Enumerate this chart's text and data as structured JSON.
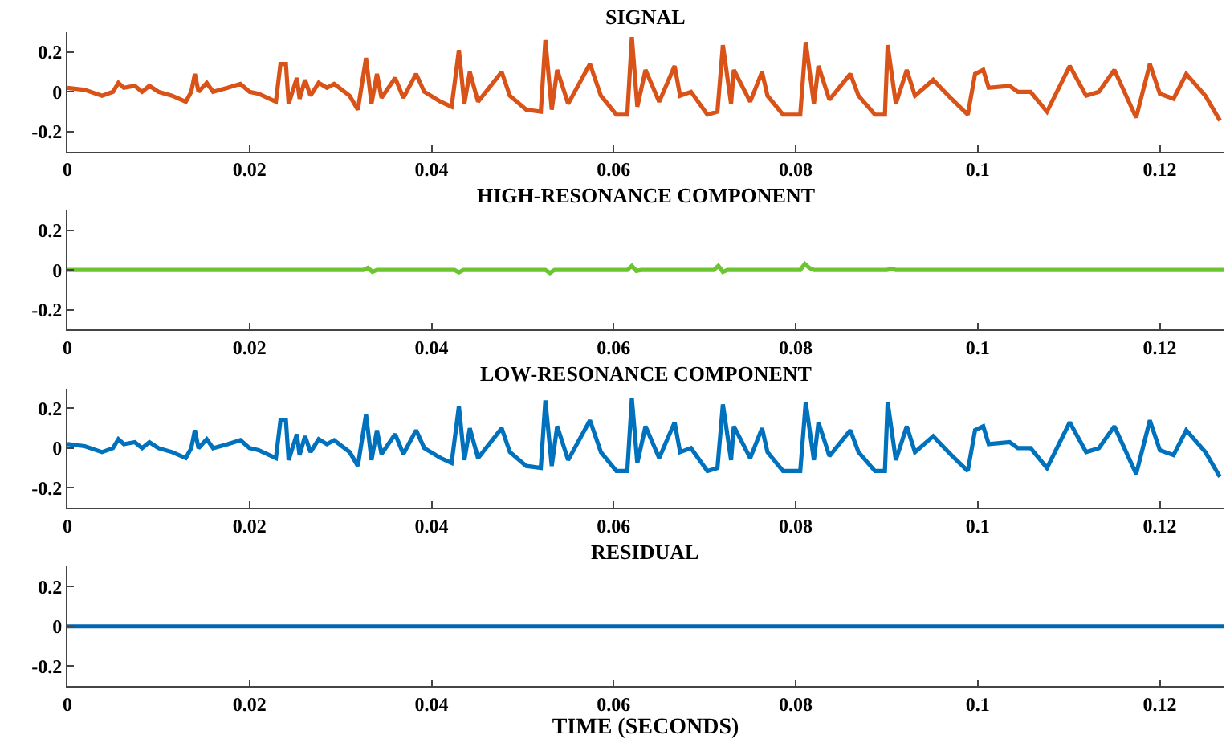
{
  "chart_data": [
    {
      "type": "line",
      "title": "SIGNAL",
      "color": "#d95319",
      "xlim": [
        0,
        0.127
      ],
      "ylim": [
        -0.3,
        0.3
      ],
      "xticks": [
        0,
        0.02,
        0.04,
        0.06,
        0.08,
        0.1,
        0.12
      ],
      "yticks": [
        -0.2,
        0,
        0.2
      ],
      "x": [
        0,
        0.0019,
        0.0038,
        0.005,
        0.0056,
        0.0062,
        0.0074,
        0.0082,
        0.009,
        0.01,
        0.0115,
        0.013,
        0.0136,
        0.014,
        0.0144,
        0.0153,
        0.016,
        0.0176,
        0.019,
        0.02,
        0.021,
        0.0229,
        0.0234,
        0.024,
        0.0243,
        0.0252,
        0.0255,
        0.0261,
        0.0267,
        0.0276,
        0.0285,
        0.0293,
        0.031,
        0.0319,
        0.0328,
        0.0334,
        0.034,
        0.0345,
        0.036,
        0.0369,
        0.0383,
        0.0392,
        0.041,
        0.0422,
        0.043,
        0.0436,
        0.0442,
        0.0451,
        0.0477,
        0.0486,
        0.0504,
        0.052,
        0.0525,
        0.0532,
        0.0538,
        0.055,
        0.0574,
        0.0586,
        0.0603,
        0.0615,
        0.062,
        0.0626,
        0.0635,
        0.065,
        0.0667,
        0.0673,
        0.0685,
        0.0703,
        0.0714,
        0.072,
        0.0729,
        0.0732,
        0.075,
        0.0763,
        0.0769,
        0.0786,
        0.0805,
        0.0811,
        0.082,
        0.0825,
        0.0837,
        0.086,
        0.0869,
        0.0887,
        0.0898,
        0.0901,
        0.091,
        0.0922,
        0.0931,
        0.0951,
        0.0971,
        0.0989,
        0.0997,
        0.1006,
        0.1012,
        0.1035,
        0.1044,
        0.1058,
        0.1076,
        0.1101,
        0.1119,
        0.1133,
        0.115,
        0.1174,
        0.1189,
        0.12,
        0.1215,
        0.1229,
        0.125,
        0.1266
      ],
      "values": [
        0.02,
        0.01,
        -0.02,
        0,
        0.045,
        0.02,
        0.03,
        0,
        0.03,
        0,
        -0.02,
        -0.05,
        0,
        0.09,
        0,
        0.045,
        0,
        0.02,
        0.04,
        0,
        -0.01,
        -0.05,
        0.14,
        0.14,
        -0.06,
        0.07,
        -0.035,
        0.06,
        -0.02,
        0.045,
        0.02,
        0.04,
        -0.02,
        -0.09,
        0.17,
        -0.06,
        0.09,
        -0.03,
        0.07,
        -0.03,
        0.09,
        0,
        -0.05,
        -0.075,
        0.21,
        -0.06,
        0.1,
        -0.05,
        0.1,
        -0.02,
        -0.09,
        -0.1,
        0.26,
        -0.09,
        0.11,
        -0.06,
        0.14,
        -0.02,
        -0.115,
        -0.115,
        0.275,
        -0.075,
        0.11,
        -0.05,
        0.13,
        -0.02,
        0,
        -0.115,
        -0.1,
        0.235,
        -0.06,
        0.11,
        -0.05,
        0.1,
        -0.02,
        -0.115,
        -0.115,
        0.25,
        -0.06,
        0.13,
        -0.04,
        0.09,
        -0.02,
        -0.115,
        -0.115,
        0.235,
        -0.06,
        0.11,
        -0.02,
        0.06,
        -0.035,
        -0.115,
        0.09,
        0.11,
        0.02,
        0.03,
        0,
        0,
        -0.1,
        0.13,
        -0.02,
        0,
        0.11,
        -0.13,
        0.14,
        -0.01,
        -0.035,
        0.09,
        -0.02,
        -0.145
      ]
    },
    {
      "type": "line",
      "title": "HIGH-RESONANCE COMPONENT",
      "color": "#6cc430",
      "xlim": [
        0,
        0.127
      ],
      "ylim": [
        -0.3,
        0.3
      ],
      "xticks": [
        0,
        0.02,
        0.04,
        0.06,
        0.08,
        0.1,
        0.12
      ],
      "yticks": [
        -0.2,
        0,
        0.2
      ],
      "x": [
        0,
        0.0325,
        0.033,
        0.0335,
        0.034,
        0.0425,
        0.043,
        0.0435,
        0.0525,
        0.053,
        0.0535,
        0.0615,
        0.062,
        0.0625,
        0.063,
        0.071,
        0.0715,
        0.072,
        0.0725,
        0.0805,
        0.081,
        0.0815,
        0.082,
        0.09,
        0.0905,
        0.091,
        0.127
      ],
      "values": [
        0,
        0,
        0.01,
        -0.01,
        0,
        0,
        -0.012,
        0,
        0,
        -0.015,
        0,
        0,
        0.02,
        -0.005,
        0,
        0,
        0.02,
        -0.01,
        0,
        0,
        0.03,
        0.01,
        0,
        0,
        0.005,
        0,
        0
      ]
    },
    {
      "type": "line",
      "title": "LOW-RESONANCE COMPONENT",
      "color": "#0072bd",
      "xlim": [
        0,
        0.127
      ],
      "ylim": [
        -0.3,
        0.3
      ],
      "xticks": [
        0,
        0.02,
        0.04,
        0.06,
        0.08,
        0.1,
        0.12
      ],
      "yticks": [
        -0.2,
        0,
        0.2
      ],
      "x": [
        0,
        0.0019,
        0.0038,
        0.005,
        0.0056,
        0.0062,
        0.0074,
        0.0082,
        0.009,
        0.01,
        0.0115,
        0.013,
        0.0136,
        0.014,
        0.0144,
        0.0153,
        0.016,
        0.0176,
        0.019,
        0.02,
        0.021,
        0.0229,
        0.0234,
        0.024,
        0.0243,
        0.0252,
        0.0255,
        0.0261,
        0.0267,
        0.0276,
        0.0285,
        0.0293,
        0.031,
        0.0319,
        0.0328,
        0.0334,
        0.034,
        0.0345,
        0.036,
        0.0369,
        0.0383,
        0.0392,
        0.041,
        0.0422,
        0.043,
        0.0436,
        0.0442,
        0.0451,
        0.0477,
        0.0486,
        0.0504,
        0.052,
        0.0525,
        0.0532,
        0.0538,
        0.055,
        0.0574,
        0.0586,
        0.0603,
        0.0615,
        0.062,
        0.0626,
        0.0635,
        0.065,
        0.0667,
        0.0673,
        0.0685,
        0.0703,
        0.0714,
        0.072,
        0.0729,
        0.0732,
        0.075,
        0.0763,
        0.0769,
        0.0786,
        0.0805,
        0.0811,
        0.082,
        0.0825,
        0.0837,
        0.086,
        0.0869,
        0.0887,
        0.0898,
        0.0901,
        0.091,
        0.0922,
        0.0931,
        0.0951,
        0.0971,
        0.0989,
        0.0997,
        0.1006,
        0.1012,
        0.1035,
        0.1044,
        0.1058,
        0.1076,
        0.1101,
        0.1119,
        0.1133,
        0.115,
        0.1174,
        0.1189,
        0.12,
        0.1215,
        0.1229,
        0.125,
        0.1266
      ],
      "values": [
        0.02,
        0.01,
        -0.02,
        0,
        0.045,
        0.02,
        0.03,
        0,
        0.03,
        0,
        -0.02,
        -0.05,
        0,
        0.09,
        0,
        0.045,
        0,
        0.02,
        0.04,
        0,
        -0.01,
        -0.05,
        0.14,
        0.14,
        -0.06,
        0.07,
        -0.035,
        0.06,
        -0.02,
        0.045,
        0.02,
        0.04,
        -0.02,
        -0.09,
        0.17,
        -0.06,
        0.09,
        -0.03,
        0.07,
        -0.03,
        0.09,
        0,
        -0.05,
        -0.075,
        0.21,
        -0.06,
        0.1,
        -0.05,
        0.1,
        -0.02,
        -0.09,
        -0.1,
        0.24,
        -0.09,
        0.11,
        -0.06,
        0.14,
        -0.02,
        -0.115,
        -0.115,
        0.25,
        -0.075,
        0.11,
        -0.05,
        0.13,
        -0.02,
        0,
        -0.115,
        -0.1,
        0.22,
        -0.06,
        0.11,
        -0.05,
        0.1,
        -0.02,
        -0.115,
        -0.115,
        0.23,
        -0.06,
        0.13,
        -0.04,
        0.09,
        -0.02,
        -0.115,
        -0.115,
        0.23,
        -0.06,
        0.11,
        -0.02,
        0.06,
        -0.035,
        -0.115,
        0.09,
        0.11,
        0.02,
        0.03,
        0,
        0,
        -0.1,
        0.13,
        -0.02,
        0,
        0.11,
        -0.13,
        0.14,
        -0.01,
        -0.035,
        0.09,
        -0.02,
        -0.145
      ]
    },
    {
      "type": "line",
      "title": "RESIDUAL",
      "xlabel": "TIME (SECONDS)",
      "color": "#0066b0",
      "xlim": [
        0,
        0.127
      ],
      "ylim": [
        -0.3,
        0.3
      ],
      "xticks": [
        0,
        0.02,
        0.04,
        0.06,
        0.08,
        0.1,
        0.12
      ],
      "yticks": [
        -0.2,
        0,
        0.2
      ],
      "x": [
        0,
        0.127
      ],
      "values": [
        0,
        0
      ]
    }
  ]
}
